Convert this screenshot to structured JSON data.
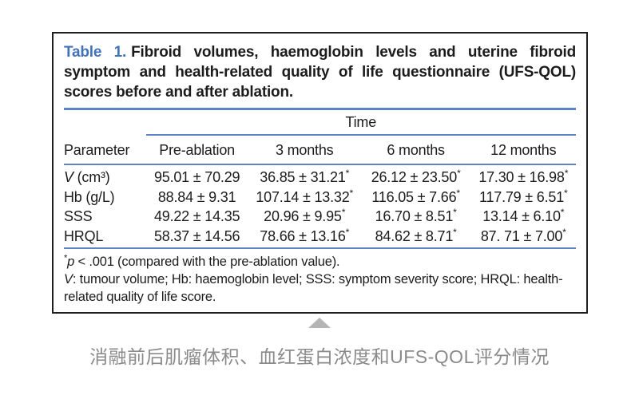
{
  "colors": {
    "accent_blue": "#4273b8",
    "rule_blue": "#5b85c2",
    "body_text": "#1c1c1c",
    "caption_gray": "#8a8a8a",
    "triangle_gray": "#b5b5b5"
  },
  "table": {
    "label": "Table 1.",
    "title": "Fibroid volumes, haemoglobin levels and uterine fibroid symptom and health-related quality of life questionnaire (UFS-QOL) scores before and after ablation.",
    "span_header": "Time",
    "columns": [
      "Parameter",
      "Pre-ablation",
      "3 months",
      "6 months",
      "12 months"
    ],
    "rows": [
      {
        "param_italic": "V",
        "param_rest": " (cm³)",
        "values": [
          "95.01 ± 70.29",
          "36.85 ± 31.21*",
          "26.12 ± 23.50*",
          "17.30 ± 16.98*"
        ]
      },
      {
        "param_italic": "",
        "param_rest": "Hb (g/L)",
        "values": [
          "88.84 ± 9.31",
          "107.14 ± 13.32*",
          "116.05 ± 7.66*",
          "117.79 ± 6.51*"
        ]
      },
      {
        "param_italic": "",
        "param_rest": "SSS",
        "values": [
          "49.22 ± 14.35",
          "20.96 ± 9.95*",
          "16.70 ± 8.51*",
          "13.14 ± 6.10*"
        ]
      },
      {
        "param_italic": "",
        "param_rest": "HRQL",
        "values": [
          "58.37 ± 14.56",
          "78.66 ± 13.16*",
          "84.62 ± 8.71*",
          "87. 71 ± 7.00*"
        ]
      }
    ],
    "footnotes": {
      "sig_star": "*",
      "sig_p": "p",
      "sig_rest": " < .001 (compared with the pre-ablation value).",
      "abbr_italic": "V",
      "abbr_rest": ": tumour volume; Hb: haemoglobin level; SSS: symptom severity score; HRQL: health-related quality of life score."
    }
  },
  "caption": {
    "triangle_icon": "triangle-up",
    "text": "消融前后肌瘤体积、血红蛋白浓度和UFS-QOL评分情况"
  }
}
